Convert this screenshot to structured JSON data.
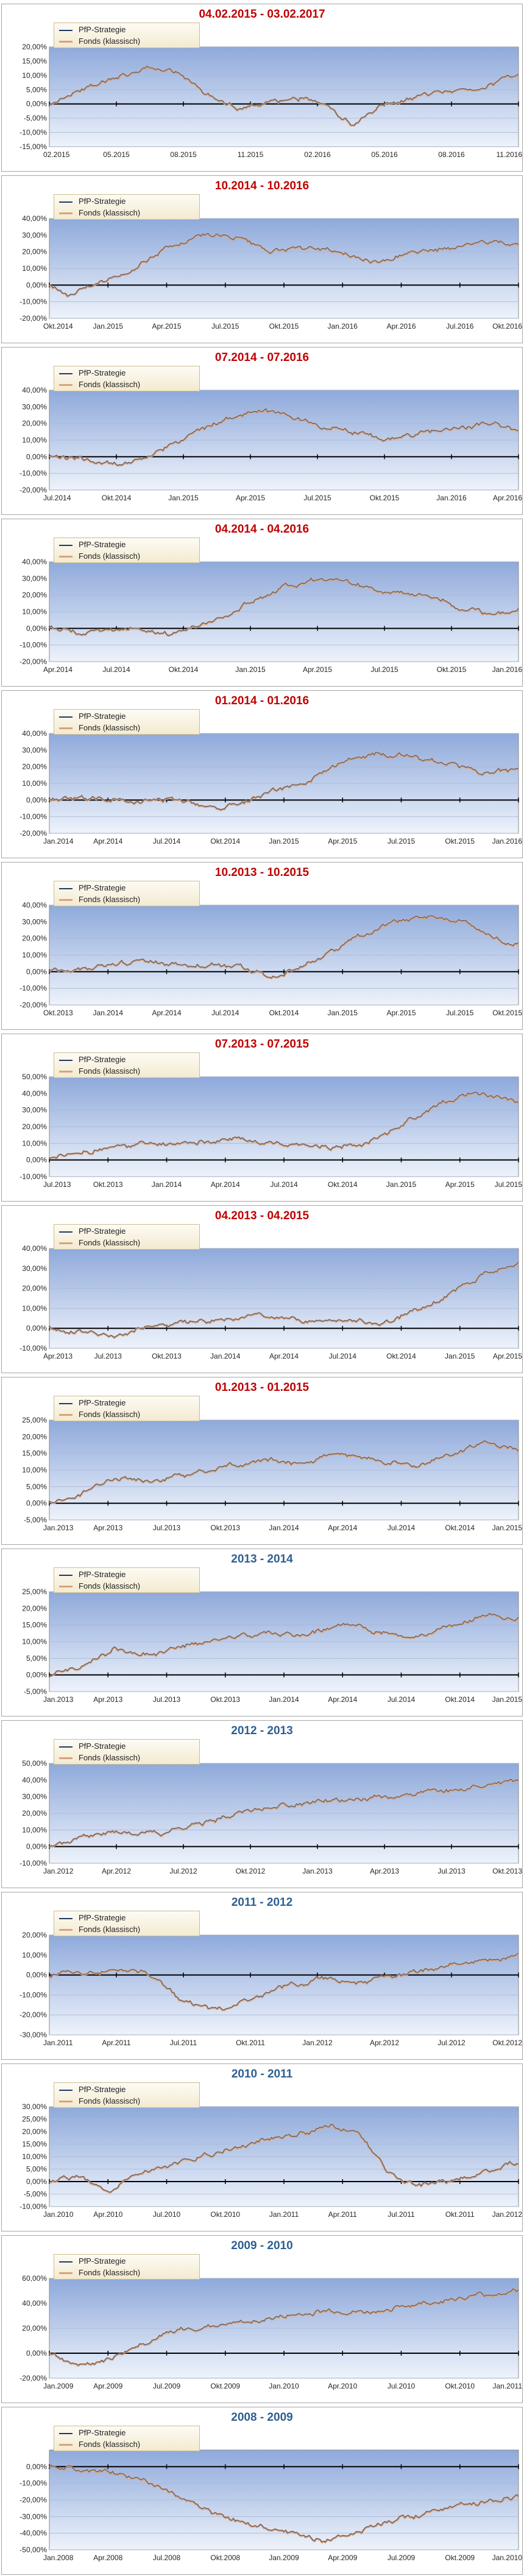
{
  "legend": [
    "PfP-Strategie",
    "Fonds (klassisch)"
  ],
  "colors": {
    "strategy": "#1f3864",
    "fund": "#d8a37a",
    "plot_top": "#8ea9db",
    "plot_bottom": "#eef3fb"
  },
  "charts": [
    {
      "title": "04.02.2015 - 03.02.2017",
      "title_color": "red",
      "ylim": [
        -15,
        20
      ],
      "yticks": [
        "20,00%",
        "15,00%",
        "10,00%",
        "5,00%",
        "0,00%",
        "-5,00%",
        "-10,00%",
        "-15,00%"
      ],
      "xticks": [
        "02.2015",
        "05.2015",
        "08.2015",
        "11.2015",
        "02.2016",
        "05.2016",
        "08.2016",
        "11.2016"
      ],
      "trend": [
        [
          0,
          0
        ],
        [
          0.05,
          4
        ],
        [
          0.12,
          8
        ],
        [
          0.2,
          12
        ],
        [
          0.27,
          11
        ],
        [
          0.33,
          4
        ],
        [
          0.4,
          -1
        ],
        [
          0.45,
          0
        ],
        [
          0.55,
          2
        ],
        [
          0.6,
          -2
        ],
        [
          0.65,
          -8
        ],
        [
          0.7,
          -2
        ],
        [
          0.78,
          2
        ],
        [
          0.85,
          4
        ],
        [
          0.92,
          6
        ],
        [
          1,
          10
        ]
      ],
      "points": []
    },
    {
      "title": "10.2014 - 10.2016",
      "title_color": "red",
      "ylim": [
        -20,
        40
      ],
      "yticks": [
        "40,00%",
        "30,00%",
        "20,00%",
        "10,00%",
        "0,00%",
        "-10,00%",
        "-20,00%"
      ],
      "xticks": [
        "Okt.2014",
        "Jan.2015",
        "Apr.2015",
        "Jul.2015",
        "Okt.2015",
        "Jan.2016",
        "Apr.2016",
        "Jul.2016",
        "Okt.2016"
      ],
      "trend": [
        [
          0,
          0
        ],
        [
          0.04,
          -6
        ],
        [
          0.1,
          0
        ],
        [
          0.18,
          10
        ],
        [
          0.25,
          22
        ],
        [
          0.33,
          30
        ],
        [
          0.4,
          28
        ],
        [
          0.46,
          20
        ],
        [
          0.55,
          22
        ],
        [
          0.62,
          20
        ],
        [
          0.68,
          14
        ],
        [
          0.75,
          18
        ],
        [
          0.85,
          22
        ],
        [
          0.92,
          26
        ],
        [
          1,
          25
        ]
      ]
    },
    {
      "title": "07.2014 - 07.2016",
      "title_color": "red",
      "ylim": [
        -20,
        40
      ],
      "yticks": [
        "40,00%",
        "30,00%",
        "20,00%",
        "10,00%",
        "0,00%",
        "-10,00%",
        "-20,00%"
      ],
      "xticks": [
        "Jul.2014",
        "Okt.2014",
        "Jan.2015",
        "Apr.2015",
        "Jul.2015",
        "Okt.2015",
        "Jan.2016",
        "Apr.2016"
      ],
      "trend": [
        [
          0,
          0
        ],
        [
          0.08,
          -2
        ],
        [
          0.15,
          -5
        ],
        [
          0.22,
          2
        ],
        [
          0.3,
          12
        ],
        [
          0.38,
          22
        ],
        [
          0.46,
          28
        ],
        [
          0.52,
          24
        ],
        [
          0.58,
          18
        ],
        [
          0.65,
          15
        ],
        [
          0.72,
          10
        ],
        [
          0.8,
          14
        ],
        [
          0.88,
          18
        ],
        [
          0.95,
          20
        ],
        [
          1,
          15
        ]
      ]
    },
    {
      "title": "04.2014 - 04.2016",
      "title_color": "red",
      "ylim": [
        -20,
        40
      ],
      "yticks": [
        "40,00%",
        "30,00%",
        "20,00%",
        "10,00%",
        "0,00%",
        "-10,00%",
        "-20,00%"
      ],
      "xticks": [
        "Apr.2014",
        "Jul.2014",
        "Okt.2014",
        "Jan.2015",
        "Apr.2015",
        "Jul.2015",
        "Okt.2015",
        "Jan.2016"
      ],
      "trend": [
        [
          0,
          0
        ],
        [
          0.08,
          -3
        ],
        [
          0.18,
          0
        ],
        [
          0.26,
          -4
        ],
        [
          0.34,
          4
        ],
        [
          0.42,
          14
        ],
        [
          0.5,
          24
        ],
        [
          0.58,
          30
        ],
        [
          0.65,
          26
        ],
        [
          0.72,
          22
        ],
        [
          0.8,
          20
        ],
        [
          0.88,
          12
        ],
        [
          0.95,
          8
        ],
        [
          1,
          12
        ]
      ]
    },
    {
      "title": "01.2014 - 01.2016",
      "title_color": "red",
      "ylim": [
        -20,
        40
      ],
      "yticks": [
        "40,00%",
        "30,00%",
        "20,00%",
        "10,00%",
        "0,00%",
        "-10,00%",
        "-20,00%"
      ],
      "xticks": [
        "Jan.2014",
        "Apr.2014",
        "Jul.2014",
        "Okt.2014",
        "Jan.2015",
        "Apr.2015",
        "Jul.2015",
        "Okt.2015",
        "Jan.2016"
      ],
      "trend": [
        [
          0,
          0
        ],
        [
          0.1,
          1
        ],
        [
          0.2,
          -1
        ],
        [
          0.28,
          0
        ],
        [
          0.36,
          -5
        ],
        [
          0.45,
          2
        ],
        [
          0.55,
          12
        ],
        [
          0.62,
          22
        ],
        [
          0.7,
          28
        ],
        [
          0.78,
          26
        ],
        [
          0.85,
          22
        ],
        [
          0.92,
          16
        ],
        [
          1,
          18
        ]
      ]
    },
    {
      "title": "10.2013 - 10.2015",
      "title_color": "red",
      "ylim": [
        -20,
        40
      ],
      "yticks": [
        "40,00%",
        "30,00%",
        "20,00%",
        "10,00%",
        "0,00%",
        "-10,00%",
        "-20,00%"
      ],
      "xticks": [
        "Okt.2013",
        "Jan.2014",
        "Apr.2014",
        "Jul.2014",
        "Okt.2014",
        "Jan.2015",
        "Apr.2015",
        "Jul.2015",
        "Okt.2015"
      ],
      "trend": [
        [
          0,
          0
        ],
        [
          0.1,
          3
        ],
        [
          0.2,
          6
        ],
        [
          0.3,
          4
        ],
        [
          0.4,
          3
        ],
        [
          0.48,
          -3
        ],
        [
          0.56,
          5
        ],
        [
          0.64,
          18
        ],
        [
          0.72,
          28
        ],
        [
          0.8,
          34
        ],
        [
          0.88,
          30
        ],
        [
          0.95,
          20
        ],
        [
          1,
          16
        ]
      ]
    },
    {
      "title": "07.2013 - 07.2015",
      "title_color": "red",
      "ylim": [
        -10,
        50
      ],
      "yticks": [
        "50,00%",
        "40,00%",
        "30,00%",
        "20,00%",
        "10,00%",
        "0,00%",
        "-10,00%"
      ],
      "xticks": [
        "Jul.2013",
        "Okt.2013",
        "Jan.2014",
        "Apr.2014",
        "Jul.2014",
        "Okt.2014",
        "Jan.2015",
        "Apr.2015",
        "Jul.2015"
      ],
      "trend": [
        [
          0,
          0
        ],
        [
          0.1,
          6
        ],
        [
          0.2,
          9
        ],
        [
          0.3,
          10
        ],
        [
          0.4,
          12
        ],
        [
          0.5,
          10
        ],
        [
          0.6,
          8
        ],
        [
          0.68,
          10
        ],
        [
          0.76,
          22
        ],
        [
          0.84,
          34
        ],
        [
          0.9,
          40
        ],
        [
          0.95,
          38
        ],
        [
          1,
          35
        ]
      ]
    },
    {
      "title": "04.2013 - 04.2015",
      "title_color": "red",
      "ylim": [
        -10,
        40
      ],
      "yticks": [
        "40,00%",
        "30,00%",
        "20,00%",
        "10,00%",
        "0,00%",
        "-10,00%"
      ],
      "xticks": [
        "Apr.2013",
        "Jul.2013",
        "Okt.2013",
        "Jan.2014",
        "Apr.2014",
        "Jul.2014",
        "Okt.2014",
        "Jan.2015",
        "Apr.2015"
      ],
      "trend": [
        [
          0,
          0
        ],
        [
          0.08,
          -2
        ],
        [
          0.15,
          -4
        ],
        [
          0.22,
          2
        ],
        [
          0.3,
          3
        ],
        [
          0.38,
          5
        ],
        [
          0.46,
          6
        ],
        [
          0.55,
          4
        ],
        [
          0.62,
          5
        ],
        [
          0.7,
          2
        ],
        [
          0.78,
          8
        ],
        [
          0.86,
          18
        ],
        [
          0.93,
          28
        ],
        [
          1,
          33
        ]
      ]
    },
    {
      "title": "01.2013 - 01.2015",
      "title_color": "red",
      "ylim": [
        -5,
        25
      ],
      "yticks": [
        "25,00%",
        "20,00%",
        "15,00%",
        "10,00%",
        "5,00%",
        "0,00%",
        "-5,00%"
      ],
      "xticks": [
        "Jan.2013",
        "Apr.2013",
        "Jul.2013",
        "Okt.2013",
        "Jan.2014",
        "Apr.2014",
        "Jul.2014",
        "Okt.2014",
        "Jan.2015"
      ],
      "trend": [
        [
          0,
          0
        ],
        [
          0.06,
          2
        ],
        [
          0.14,
          8
        ],
        [
          0.22,
          6
        ],
        [
          0.3,
          9
        ],
        [
          0.38,
          11
        ],
        [
          0.46,
          13
        ],
        [
          0.54,
          12
        ],
        [
          0.62,
          15
        ],
        [
          0.7,
          13
        ],
        [
          0.78,
          11
        ],
        [
          0.86,
          15
        ],
        [
          0.93,
          18
        ],
        [
          1,
          16
        ]
      ]
    },
    {
      "title": "2013 - 2014",
      "title_color": "blue",
      "ylim": [
        -5,
        25
      ],
      "yticks": [
        "25,00%",
        "20,00%",
        "15,00%",
        "10,00%",
        "5,00%",
        "0,00%",
        "-5,00%"
      ],
      "xticks": [
        "Jan.2013",
        "Apr.2013",
        "Jul.2013",
        "Okt.2013",
        "Jan.2014",
        "Apr.2014",
        "Jul.2014",
        "Okt.2014",
        "Jan.2015"
      ],
      "trend": [
        [
          0,
          0
        ],
        [
          0.06,
          2
        ],
        [
          0.14,
          8
        ],
        [
          0.22,
          6
        ],
        [
          0.3,
          9
        ],
        [
          0.38,
          11
        ],
        [
          0.46,
          13
        ],
        [
          0.54,
          12
        ],
        [
          0.62,
          15
        ],
        [
          0.7,
          13
        ],
        [
          0.78,
          11
        ],
        [
          0.86,
          15
        ],
        [
          0.93,
          18
        ],
        [
          1,
          17
        ]
      ]
    },
    {
      "title": "2012 - 2013",
      "title_color": "blue",
      "ylim": [
        -10,
        50
      ],
      "yticks": [
        "50,00%",
        "40,00%",
        "30,00%",
        "20,00%",
        "10,00%",
        "0,00%",
        "-10,00%"
      ],
      "xticks": [
        "Jan.2012",
        "Apr.2012",
        "Jul.2012",
        "Okt.2012",
        "Jan.2013",
        "Apr.2013",
        "Jul.2013",
        "Okt.2013"
      ],
      "trend": [
        [
          0,
          0
        ],
        [
          0.08,
          6
        ],
        [
          0.16,
          9
        ],
        [
          0.24,
          8
        ],
        [
          0.32,
          14
        ],
        [
          0.4,
          20
        ],
        [
          0.48,
          24
        ],
        [
          0.56,
          26
        ],
        [
          0.64,
          28
        ],
        [
          0.72,
          30
        ],
        [
          0.8,
          32
        ],
        [
          0.88,
          34
        ],
        [
          0.95,
          38
        ],
        [
          1,
          40
        ]
      ]
    },
    {
      "title": "2011 - 2012",
      "title_color": "blue",
      "ylim": [
        -30,
        20
      ],
      "yticks": [
        "20,00%",
        "10,00%",
        "0,00%",
        "-10,00%",
        "-20,00%",
        "-30,00%"
      ],
      "xticks": [
        "Jan.2011",
        "Apr.2011",
        "Jul.2011",
        "Okt.2011",
        "Jan.2012",
        "Apr.2012",
        "Jul.2012",
        "Okt.2012"
      ],
      "trend": [
        [
          0,
          0
        ],
        [
          0.08,
          1
        ],
        [
          0.16,
          2
        ],
        [
          0.22,
          0
        ],
        [
          0.28,
          -12
        ],
        [
          0.34,
          -18
        ],
        [
          0.42,
          -14
        ],
        [
          0.5,
          -6
        ],
        [
          0.58,
          -2
        ],
        [
          0.66,
          -4
        ],
        [
          0.72,
          -2
        ],
        [
          0.8,
          2
        ],
        [
          0.88,
          6
        ],
        [
          0.95,
          8
        ],
        [
          1,
          10
        ]
      ]
    },
    {
      "title": "2010 - 2011",
      "title_color": "blue",
      "ylim": [
        -10,
        30
      ],
      "yticks": [
        "30,00%",
        "25,00%",
        "20,00%",
        "15,00%",
        "10,00%",
        "5,00%",
        "0,00%",
        "-5,00%",
        "-10,00%"
      ],
      "xticks": [
        "Jan.2010",
        "Apr.2010",
        "Jul.2010",
        "Okt.2010",
        "Jan.2011",
        "Apr.2011",
        "Jul.2011",
        "Okt.2011",
        "Jan.2012"
      ],
      "trend": [
        [
          0,
          0
        ],
        [
          0.06,
          2
        ],
        [
          0.12,
          -4
        ],
        [
          0.2,
          4
        ],
        [
          0.28,
          8
        ],
        [
          0.36,
          12
        ],
        [
          0.44,
          16
        ],
        [
          0.52,
          18
        ],
        [
          0.6,
          22
        ],
        [
          0.66,
          20
        ],
        [
          0.72,
          4
        ],
        [
          0.78,
          -2
        ],
        [
          0.86,
          0
        ],
        [
          0.93,
          4
        ],
        [
          1,
          8
        ]
      ]
    },
    {
      "title": "2009 - 2010",
      "title_color": "blue",
      "ylim": [
        -20,
        60
      ],
      "yticks": [
        "60,00%",
        "40,00%",
        "20,00%",
        "0,00%",
        "-20,00%"
      ],
      "xticks": [
        "Jan.2009",
        "Apr.2009",
        "Jul.2009",
        "Okt.2009",
        "Jan.2010",
        "Apr.2010",
        "Jul.2010",
        "Okt.2010",
        "Jan.2011"
      ],
      "trend": [
        [
          0,
          0
        ],
        [
          0.06,
          -10
        ],
        [
          0.12,
          -6
        ],
        [
          0.2,
          8
        ],
        [
          0.28,
          18
        ],
        [
          0.36,
          22
        ],
        [
          0.44,
          26
        ],
        [
          0.52,
          30
        ],
        [
          0.6,
          34
        ],
        [
          0.68,
          32
        ],
        [
          0.76,
          38
        ],
        [
          0.84,
          42
        ],
        [
          0.92,
          46
        ],
        [
          1,
          50
        ]
      ]
    },
    {
      "title": "2008 - 2009",
      "title_color": "blue",
      "ylim": [
        -50,
        10
      ],
      "yticks": [
        "0,00%",
        "-10,00%",
        "-20,00%",
        "-30,00%",
        "-40,00%",
        "-50,00%"
      ],
      "xticks": [
        "Jan.2008",
        "Apr.2008",
        "Jul.2008",
        "Okt.2008",
        "Jan.2009",
        "Apr.2009",
        "Jul.2009",
        "Okt.2009",
        "Jan.2010"
      ],
      "trend": [
        [
          0,
          0
        ],
        [
          0.06,
          -2
        ],
        [
          0.12,
          -4
        ],
        [
          0.2,
          -8
        ],
        [
          0.28,
          -18
        ],
        [
          0.36,
          -30
        ],
        [
          0.44,
          -36
        ],
        [
          0.52,
          -40
        ],
        [
          0.58,
          -45
        ],
        [
          0.64,
          -40
        ],
        [
          0.72,
          -34
        ],
        [
          0.8,
          -28
        ],
        [
          0.88,
          -24
        ],
        [
          0.95,
          -20
        ],
        [
          1,
          -18
        ]
      ]
    }
  ]
}
